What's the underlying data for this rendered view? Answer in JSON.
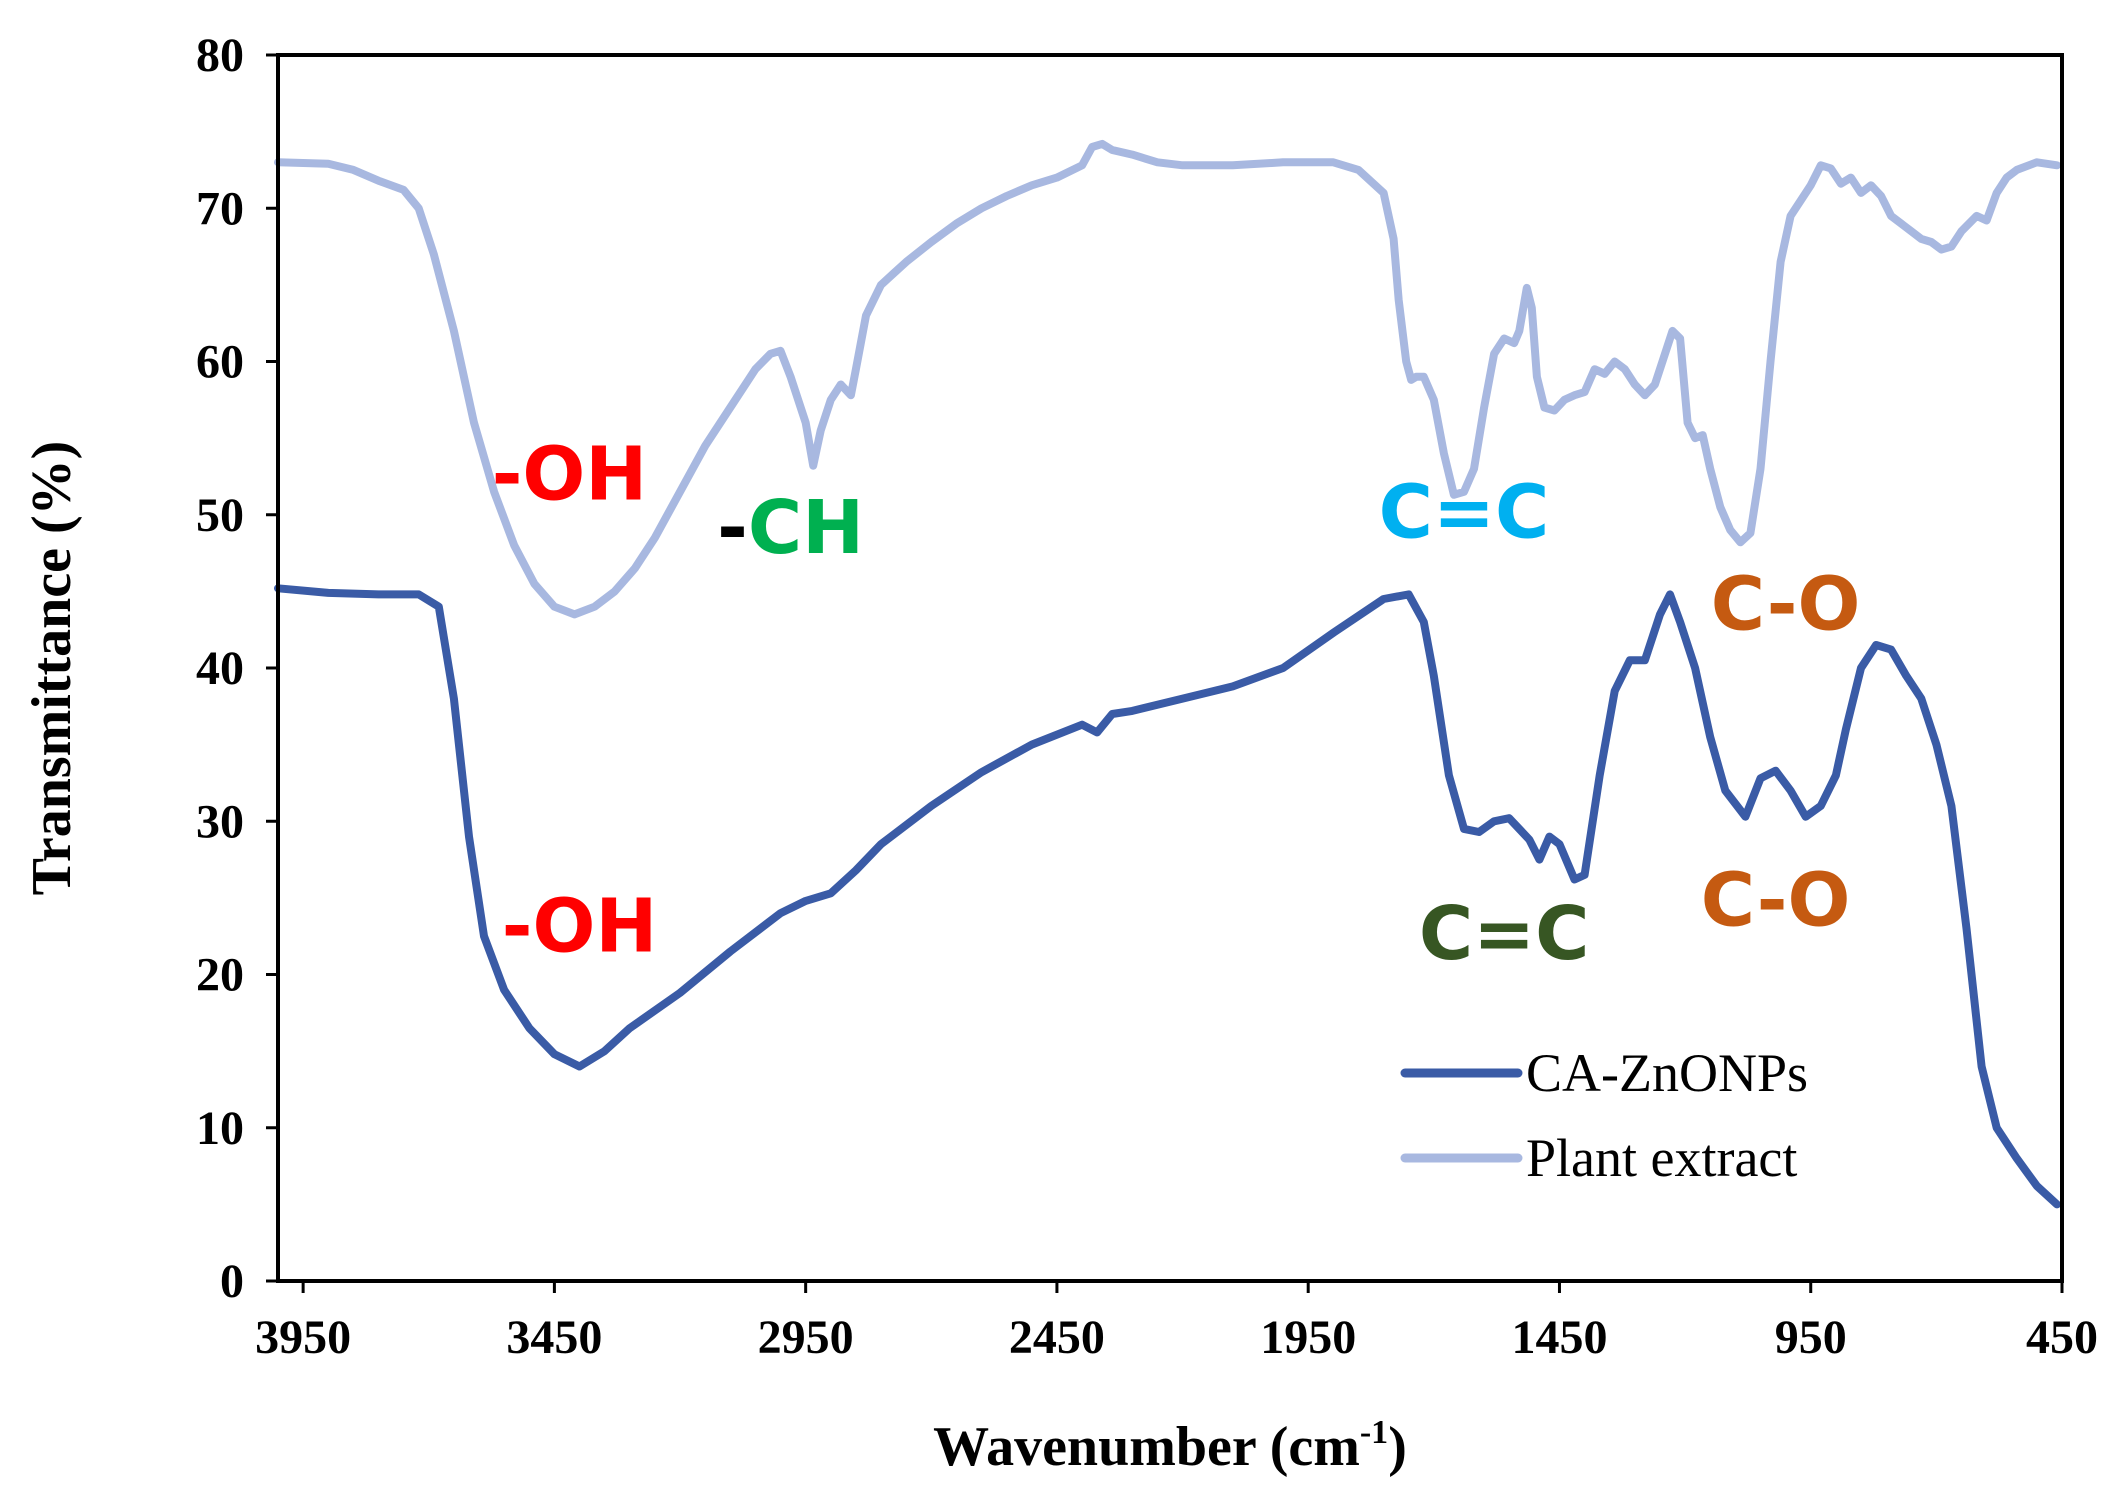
{
  "chart_data": {
    "type": "line",
    "title": "",
    "xlabel": "Wavenumber (cm",
    "xlabel_superscript": "-1",
    "xlabel_suffix": ")",
    "ylabel": "Transmittance (%)",
    "xlim": [
      4000,
      450
    ],
    "x_reversed": true,
    "ylim": [
      0,
      80
    ],
    "x_ticks": [
      3950,
      3450,
      2950,
      2450,
      1950,
      1450,
      950,
      450
    ],
    "y_ticks": [
      0,
      10,
      20,
      30,
      40,
      50,
      60,
      70,
      80
    ],
    "grid": false,
    "legend_position": "bottom-right",
    "series": [
      {
        "name": "CA-ZnONPs",
        "color": "#3A5BA6",
        "points": [
          [
            4000,
            45.2
          ],
          [
            3900,
            44.9
          ],
          [
            3800,
            44.8
          ],
          [
            3720,
            44.8
          ],
          [
            3680,
            44.0
          ],
          [
            3650,
            38.0
          ],
          [
            3620,
            29.0
          ],
          [
            3590,
            22.5
          ],
          [
            3550,
            19.0
          ],
          [
            3500,
            16.5
          ],
          [
            3450,
            14.8
          ],
          [
            3400,
            14.0
          ],
          [
            3350,
            15.0
          ],
          [
            3300,
            16.5
          ],
          [
            3200,
            18.8
          ],
          [
            3100,
            21.5
          ],
          [
            3000,
            24.0
          ],
          [
            2950,
            24.8
          ],
          [
            2900,
            25.3
          ],
          [
            2850,
            26.8
          ],
          [
            2800,
            28.5
          ],
          [
            2700,
            31.0
          ],
          [
            2600,
            33.2
          ],
          [
            2500,
            35.0
          ],
          [
            2400,
            36.3
          ],
          [
            2370,
            35.8
          ],
          [
            2340,
            37.0
          ],
          [
            2300,
            37.2
          ],
          [
            2200,
            38.0
          ],
          [
            2100,
            38.8
          ],
          [
            2000,
            40.0
          ],
          [
            1900,
            42.3
          ],
          [
            1800,
            44.5
          ],
          [
            1750,
            44.8
          ],
          [
            1720,
            43.0
          ],
          [
            1700,
            39.5
          ],
          [
            1670,
            33.0
          ],
          [
            1640,
            29.5
          ],
          [
            1610,
            29.3
          ],
          [
            1580,
            30.0
          ],
          [
            1550,
            30.2
          ],
          [
            1510,
            28.8
          ],
          [
            1490,
            27.5
          ],
          [
            1470,
            29.0
          ],
          [
            1450,
            28.5
          ],
          [
            1420,
            26.2
          ],
          [
            1400,
            26.5
          ],
          [
            1370,
            33.0
          ],
          [
            1340,
            38.5
          ],
          [
            1310,
            40.5
          ],
          [
            1280,
            40.5
          ],
          [
            1250,
            43.5
          ],
          [
            1230,
            44.8
          ],
          [
            1210,
            43.0
          ],
          [
            1180,
            40.0
          ],
          [
            1150,
            35.5
          ],
          [
            1120,
            32.0
          ],
          [
            1080,
            30.3
          ],
          [
            1050,
            32.8
          ],
          [
            1020,
            33.3
          ],
          [
            990,
            32.0
          ],
          [
            960,
            30.3
          ],
          [
            930,
            31.0
          ],
          [
            900,
            33.0
          ],
          [
            880,
            36.0
          ],
          [
            850,
            40.0
          ],
          [
            820,
            41.5
          ],
          [
            790,
            41.2
          ],
          [
            760,
            39.5
          ],
          [
            730,
            38.0
          ],
          [
            700,
            35.0
          ],
          [
            670,
            31.0
          ],
          [
            640,
            23.0
          ],
          [
            610,
            14.0
          ],
          [
            580,
            10.0
          ],
          [
            540,
            8.0
          ],
          [
            500,
            6.2
          ],
          [
            460,
            5.0
          ]
        ]
      },
      {
        "name": "Plant extract",
        "color": "#A8B8E0",
        "points": [
          [
            4000,
            73.0
          ],
          [
            3900,
            72.9
          ],
          [
            3850,
            72.5
          ],
          [
            3800,
            71.8
          ],
          [
            3750,
            71.2
          ],
          [
            3720,
            70.0
          ],
          [
            3690,
            67.0
          ],
          [
            3650,
            62.0
          ],
          [
            3610,
            56.0
          ],
          [
            3570,
            51.5
          ],
          [
            3530,
            48.0
          ],
          [
            3490,
            45.5
          ],
          [
            3450,
            44.0
          ],
          [
            3410,
            43.5
          ],
          [
            3370,
            44.0
          ],
          [
            3330,
            45.0
          ],
          [
            3290,
            46.5
          ],
          [
            3250,
            48.5
          ],
          [
            3200,
            51.5
          ],
          [
            3150,
            54.5
          ],
          [
            3100,
            57.0
          ],
          [
            3050,
            59.5
          ],
          [
            3020,
            60.5
          ],
          [
            3000,
            60.7
          ],
          [
            2980,
            59.0
          ],
          [
            2950,
            56.0
          ],
          [
            2935,
            53.2
          ],
          [
            2920,
            55.5
          ],
          [
            2900,
            57.5
          ],
          [
            2880,
            58.5
          ],
          [
            2860,
            57.8
          ],
          [
            2850,
            59.5
          ],
          [
            2830,
            63.0
          ],
          [
            2800,
            65.0
          ],
          [
            2750,
            66.5
          ],
          [
            2700,
            67.8
          ],
          [
            2650,
            69.0
          ],
          [
            2600,
            70.0
          ],
          [
            2550,
            70.8
          ],
          [
            2500,
            71.5
          ],
          [
            2450,
            72.0
          ],
          [
            2400,
            72.8
          ],
          [
            2380,
            74.0
          ],
          [
            2360,
            74.2
          ],
          [
            2340,
            73.8
          ],
          [
            2300,
            73.5
          ],
          [
            2250,
            73.0
          ],
          [
            2200,
            72.8
          ],
          [
            2100,
            72.8
          ],
          [
            2000,
            73.0
          ],
          [
            1900,
            73.0
          ],
          [
            1850,
            72.5
          ],
          [
            1800,
            71.0
          ],
          [
            1780,
            68.0
          ],
          [
            1770,
            64.0
          ],
          [
            1755,
            60.0
          ],
          [
            1745,
            58.8
          ],
          [
            1735,
            59.0
          ],
          [
            1720,
            59.0
          ],
          [
            1700,
            57.5
          ],
          [
            1680,
            54.0
          ],
          [
            1660,
            51.3
          ],
          [
            1640,
            51.5
          ],
          [
            1620,
            53.0
          ],
          [
            1600,
            57.0
          ],
          [
            1580,
            60.5
          ],
          [
            1560,
            61.5
          ],
          [
            1540,
            61.2
          ],
          [
            1530,
            62.0
          ],
          [
            1515,
            64.8
          ],
          [
            1505,
            63.5
          ],
          [
            1495,
            59.0
          ],
          [
            1480,
            57.0
          ],
          [
            1460,
            56.8
          ],
          [
            1440,
            57.5
          ],
          [
            1420,
            57.8
          ],
          [
            1400,
            58.0
          ],
          [
            1380,
            59.5
          ],
          [
            1360,
            59.2
          ],
          [
            1340,
            60.0
          ],
          [
            1320,
            59.5
          ],
          [
            1300,
            58.5
          ],
          [
            1280,
            57.8
          ],
          [
            1260,
            58.5
          ],
          [
            1240,
            60.5
          ],
          [
            1225,
            62.0
          ],
          [
            1210,
            61.5
          ],
          [
            1195,
            56.0
          ],
          [
            1180,
            55.0
          ],
          [
            1165,
            55.2
          ],
          [
            1150,
            53.0
          ],
          [
            1130,
            50.5
          ],
          [
            1110,
            49.0
          ],
          [
            1090,
            48.2
          ],
          [
            1070,
            48.8
          ],
          [
            1050,
            53.0
          ],
          [
            1030,
            60.0
          ],
          [
            1010,
            66.5
          ],
          [
            990,
            69.5
          ],
          [
            970,
            70.5
          ],
          [
            950,
            71.5
          ],
          [
            930,
            72.8
          ],
          [
            910,
            72.6
          ],
          [
            890,
            71.6
          ],
          [
            870,
            72.0
          ],
          [
            850,
            71.0
          ],
          [
            830,
            71.5
          ],
          [
            810,
            70.8
          ],
          [
            790,
            69.5
          ],
          [
            770,
            69.0
          ],
          [
            750,
            68.5
          ],
          [
            730,
            68.0
          ],
          [
            710,
            67.8
          ],
          [
            690,
            67.3
          ],
          [
            670,
            67.5
          ],
          [
            650,
            68.5
          ],
          [
            620,
            69.5
          ],
          [
            600,
            69.2
          ],
          [
            580,
            71.0
          ],
          [
            560,
            72.0
          ],
          [
            540,
            72.5
          ],
          [
            500,
            73.0
          ],
          [
            460,
            72.8
          ]
        ]
      }
    ],
    "annotations": [
      {
        "text": "-OH",
        "color": "#FF0000",
        "x": 3420,
        "y": 51
      },
      {
        "text": "-CH",
        "color": "#00B050",
        "dash_color": "#000000",
        "x": 2980,
        "y": 47.5
      },
      {
        "text": "C=C",
        "color": "#00B0F0",
        "x": 1640,
        "y": 48.5
      },
      {
        "text": "C-O",
        "color": "#C55A11",
        "x": 1000,
        "y": 42.5
      },
      {
        "text": "-OH",
        "color": "#FF0000",
        "x": 3400,
        "y": 21.5
      },
      {
        "text": "C=C",
        "color": "#375623",
        "x": 1560,
        "y": 21.0
      },
      {
        "text": "C-O",
        "color": "#C55A11",
        "x": 1020,
        "y": 23.2
      }
    ]
  }
}
